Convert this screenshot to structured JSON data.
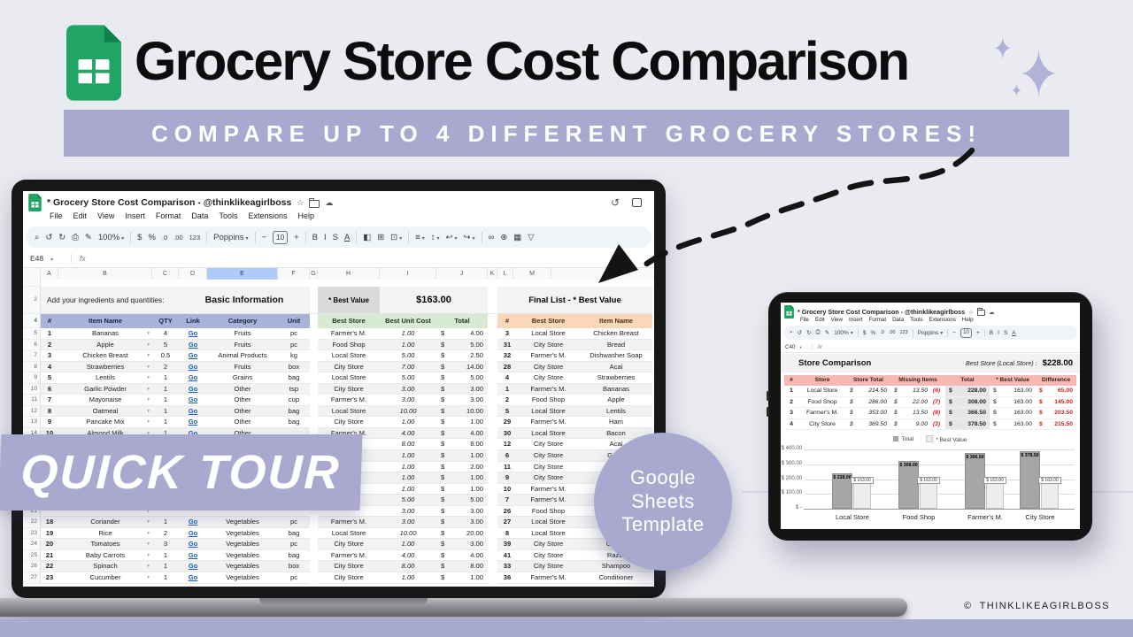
{
  "page": {
    "title": "Grocery Store Cost Comparison",
    "subtitle": "COMPARE UP TO 4 DIFFERENT GROCERY STORES!",
    "quick_tour_label": "QUICK TOUR",
    "badge": {
      "line1": "Google",
      "line2": "Sheets",
      "line3": "Template"
    },
    "copyright_symbol": "©",
    "copyright": "THINKLIKEAGIRLBOSS",
    "sparkle_glyph": "✦"
  },
  "colors": {
    "accent_lavender": "#a9a9d0",
    "sheets_green": "#21a565",
    "bottom_bar": "#a9abce",
    "header_periwinkle": "#a9b3da",
    "header_green": "#d9ead3",
    "header_peach": "#fad7b6",
    "header_pink": "#f5b8b3",
    "negative_red": "#cc1f1f",
    "link_blue": "#1a5dc8"
  },
  "laptop": {
    "doc_title": "* Grocery Store Cost Comparison - @thinklikeagirlboss",
    "menus": [
      "File",
      "Edit",
      "View",
      "Insert",
      "Format",
      "Data",
      "Tools",
      "Extensions",
      "Help"
    ],
    "toolbar": [
      {
        "n": "search-icon",
        "g": "⌕"
      },
      {
        "n": "undo-icon",
        "g": "↺"
      },
      {
        "n": "redo-icon",
        "g": "↻"
      },
      {
        "n": "print-icon",
        "g": "⎙"
      },
      {
        "n": "paint-format-icon",
        "g": "✎"
      },
      {
        "n": "zoom-select",
        "g": "100%",
        "c": "dd"
      },
      {
        "n": "separator",
        "g": "",
        "c": "sep"
      },
      {
        "n": "currency-format-icon",
        "g": "$"
      },
      {
        "n": "percent-format-icon",
        "g": "%"
      },
      {
        "n": "decrease-decimal-icon",
        "g": ".0",
        "c": "sm"
      },
      {
        "n": "increase-decimal-icon",
        "g": ".00",
        "c": "sm"
      },
      {
        "n": "more-formats-icon",
        "g": "123",
        "c": "sm"
      },
      {
        "n": "separator",
        "g": "",
        "c": "sep"
      },
      {
        "n": "font-select",
        "g": "Poppins",
        "c": "dd"
      },
      {
        "n": "separator",
        "g": "",
        "c": "sep"
      },
      {
        "n": "font-size-decrease",
        "g": "−"
      },
      {
        "n": "font-size-value",
        "g": "10",
        "c": "box"
      },
      {
        "n": "font-size-increase",
        "g": "+"
      },
      {
        "n": "separator",
        "g": "",
        "c": "sep"
      },
      {
        "n": "bold-icon",
        "g": "B"
      },
      {
        "n": "italic-icon",
        "g": "I"
      },
      {
        "n": "strikethrough-icon",
        "g": "S"
      },
      {
        "n": "text-color-icon",
        "g": "A",
        "c": "ul"
      },
      {
        "n": "separator",
        "g": "",
        "c": "sep"
      },
      {
        "n": "fill-color-icon",
        "g": "◧"
      },
      {
        "n": "borders-icon",
        "g": "⊞"
      },
      {
        "n": "merge-cells-icon",
        "g": "⊡",
        "c": "dd"
      },
      {
        "n": "separator",
        "g": "",
        "c": "sep"
      },
      {
        "n": "horizontal-align-icon",
        "g": "≡",
        "c": "dd"
      },
      {
        "n": "vertical-align-icon",
        "g": "↕",
        "c": "dd"
      },
      {
        "n": "text-wrap-icon",
        "g": "↩",
        "c": "dd"
      },
      {
        "n": "text-rotation-icon",
        "g": "↪",
        "c": "dd"
      },
      {
        "n": "separator",
        "g": "",
        "c": "sep"
      },
      {
        "n": "insert-link-icon",
        "g": "∞"
      },
      {
        "n": "insert-comment-icon",
        "g": "⊕"
      },
      {
        "n": "insert-chart-icon",
        "g": "▦"
      },
      {
        "n": "filter-icon",
        "g": "▽"
      }
    ],
    "name_box": "E48",
    "fx_label": "fx",
    "col_letters": [
      "A",
      "B",
      "C",
      "D",
      "E",
      "F",
      "G",
      "H",
      "I",
      "J",
      "K",
      "L",
      "M"
    ],
    "gutter_rows": {
      "r1": "1",
      "r2": "2",
      "r3": "3",
      "r4": "4"
    },
    "labels": {
      "add_line": "Add your ingredients and quantities:",
      "basic_info": "Basic Information",
      "best_value_chip": "* Best Value",
      "best_value_total": "$163.00",
      "final_list_title": "Final List - * Best Value"
    },
    "left_headers": [
      "#",
      "Item Name",
      "QTY",
      "Link",
      "Category",
      "Unit"
    ],
    "mid_headers": [
      "Best Store",
      "Best Unit Cost",
      "Total"
    ],
    "final_headers": [
      "#",
      "Best Store",
      "Item Name"
    ],
    "dollar": "$",
    "rows": [
      {
        "r": "5",
        "no": "1",
        "item": "Bananas",
        "qty": "4",
        "link": "Go",
        "cat": "Fruits",
        "unit": "pc",
        "store": "Farmer's M.",
        "cost": "1.00",
        "total": "4.00",
        "fno": "3",
        "fstore": "Local Store",
        "fitem": "Chicken Breast"
      },
      {
        "r": "6",
        "no": "2",
        "item": "Apple",
        "qty": "5",
        "link": "Go",
        "cat": "Fruits",
        "unit": "pc",
        "store": "Food Shop",
        "cost": "1.00",
        "total": "5.00",
        "fno": "31",
        "fstore": "City Store",
        "fitem": "Bread"
      },
      {
        "r": "7",
        "no": "3",
        "item": "Chicken Breast",
        "qty": "0.5",
        "link": "Go",
        "cat": "Animal Products",
        "unit": "kg",
        "store": "Local Store",
        "cost": "5.00",
        "total": "2.50",
        "fno": "32",
        "fstore": "Farmer's M.",
        "fitem": "Dishwasher Soap"
      },
      {
        "r": "8",
        "no": "4",
        "item": "Strawberries",
        "qty": "2",
        "link": "Go",
        "cat": "Fruits",
        "unit": "box",
        "store": "City Store",
        "cost": "7.00",
        "total": "14.00",
        "fno": "28",
        "fstore": "City Store",
        "fitem": "Acai"
      },
      {
        "r": "9",
        "no": "5",
        "item": "Lentils",
        "qty": "1",
        "link": "Go",
        "cat": "Grains",
        "unit": "bag",
        "store": "Local Store",
        "cost": "5.00",
        "total": "5.00",
        "fno": "4",
        "fstore": "City Store",
        "fitem": "Strawberries"
      },
      {
        "r": "10",
        "no": "6",
        "item": "Garlic Powder",
        "qty": "1",
        "link": "Go",
        "cat": "Other",
        "unit": "tsp",
        "store": "City Store",
        "cost": "3.00",
        "total": "3.00",
        "fno": "1",
        "fstore": "Farmer's M.",
        "fitem": "Bananas"
      },
      {
        "r": "11",
        "no": "7",
        "item": "Mayonaise",
        "qty": "1",
        "link": "Go",
        "cat": "Other",
        "unit": "cup",
        "store": "Farmer's M.",
        "cost": "3.00",
        "total": "3.00",
        "fno": "2",
        "fstore": "Food Shop",
        "fitem": "Apple"
      },
      {
        "r": "12",
        "no": "8",
        "item": "Oatmeal",
        "qty": "1",
        "link": "Go",
        "cat": "Other",
        "unit": "bag",
        "store": "Local Store",
        "cost": "10.00",
        "total": "10.00",
        "fno": "5",
        "fstore": "Local Store",
        "fitem": "Lentils"
      },
      {
        "r": "13",
        "no": "9",
        "item": "Pancake Mix",
        "qty": "1",
        "link": "Go",
        "cat": "Other",
        "unit": "bag",
        "store": "City Store",
        "cost": "1.00",
        "total": "1.00",
        "fno": "29",
        "fstore": "Farmer's M.",
        "fitem": "Ham"
      },
      {
        "r": "14",
        "no": "10",
        "item": "Almond Milk",
        "qty": "1",
        "link": "Go",
        "cat": "Other",
        "unit": "",
        "store": "Farmer's M.",
        "cost": "4.00",
        "total": "4.00",
        "fno": "30",
        "fstore": "Local Store",
        "fitem": "Bacon"
      },
      {
        "r": "15",
        "no": "",
        "item": "",
        "qty": "",
        "link": "",
        "cat": "",
        "unit": "",
        "store": "",
        "cost": "8.00",
        "total": "8.00",
        "fno": "12",
        "fstore": "City Store",
        "fitem": "Acai"
      },
      {
        "r": "16",
        "no": "",
        "item": "",
        "qty": "",
        "link": "",
        "cat": "",
        "unit": "",
        "store": "",
        "cost": "1.00",
        "total": "1.00",
        "fno": "6",
        "fstore": "City Store",
        "fitem": "Garlic"
      },
      {
        "r": "17",
        "no": "",
        "item": "",
        "qty": "",
        "link": "",
        "cat": "",
        "unit": "",
        "store": "",
        "cost": "1.00",
        "total": "2.00",
        "fno": "11",
        "fstore": "City Store",
        "fitem": "Gr"
      },
      {
        "r": "18",
        "no": "",
        "item": "",
        "qty": "",
        "link": "",
        "cat": "",
        "unit": "",
        "store": "",
        "cost": "1.00",
        "total": "1.00",
        "fno": "9",
        "fstore": "City Store",
        "fitem": "P"
      },
      {
        "r": "19",
        "no": "",
        "item": "",
        "qty": "",
        "link": "",
        "cat": "",
        "unit": "",
        "store": "",
        "cost": "1.00",
        "total": "1.00",
        "fno": "10",
        "fstore": "Farmer's M.",
        "fitem": ""
      },
      {
        "r": "20",
        "no": "",
        "item": "",
        "qty": "",
        "link": "",
        "cat": "",
        "unit": "",
        "store": "",
        "cost": "5.00",
        "total": "5.00",
        "fno": "7",
        "fstore": "Farmer's M.",
        "fitem": ""
      },
      {
        "r": "21",
        "no": "",
        "item": "",
        "qty": "",
        "link": "",
        "cat": "",
        "unit": "",
        "store": "",
        "cost": "3.00",
        "total": "3.00",
        "fno": "26",
        "fstore": "Food Shop",
        "fitem": ""
      },
      {
        "r": "22",
        "no": "18",
        "item": "Coriander",
        "qty": "1",
        "link": "Go",
        "cat": "Vegetables",
        "unit": "pc",
        "store": "Farmer's M.",
        "cost": "3.00",
        "total": "3.00",
        "fno": "27",
        "fstore": "Local Store",
        "fitem": ""
      },
      {
        "r": "23",
        "no": "19",
        "item": "Rice",
        "qty": "2",
        "link": "Go",
        "cat": "Vegetables",
        "unit": "bag",
        "store": "Local Store",
        "cost": "10.00",
        "total": "20.00",
        "fno": "8",
        "fstore": "Local Store",
        "fitem": "O"
      },
      {
        "r": "24",
        "no": "20",
        "item": "Tomatoes",
        "qty": "3",
        "link": "Go",
        "cat": "Vegetables",
        "unit": "pc",
        "store": "City Store",
        "cost": "1.00",
        "total": "3.00",
        "fno": "39",
        "fstore": "City Store",
        "fitem": "Cotton"
      },
      {
        "r": "25",
        "no": "21",
        "item": "Baby Carrots",
        "qty": "1",
        "link": "Go",
        "cat": "Vegetables",
        "unit": "bag",
        "store": "Farmer's M.",
        "cost": "4.00",
        "total": "4.00",
        "fno": "41",
        "fstore": "City Store",
        "fitem": "Razor"
      },
      {
        "r": "26",
        "no": "22",
        "item": "Spinach",
        "qty": "1",
        "link": "Go",
        "cat": "Vegetables",
        "unit": "box",
        "store": "City Store",
        "cost": "8.00",
        "total": "8.00",
        "fno": "33",
        "fstore": "City Store",
        "fitem": "Shampoo"
      },
      {
        "r": "27",
        "no": "23",
        "item": "Cucumber",
        "qty": "1",
        "link": "Go",
        "cat": "Vegetables",
        "unit": "pc",
        "store": "City Store",
        "cost": "1.00",
        "total": "1.00",
        "fno": "36",
        "fstore": "Farmer's M.",
        "fitem": "Conditioner"
      }
    ]
  },
  "tablet": {
    "doc_title": "* Grocery Store Cost Comparison - @thinklikeagirlboss",
    "menus": [
      "File",
      "Edit",
      "View",
      "Insert",
      "Format",
      "Data",
      "Tools",
      "Extensions",
      "Help"
    ],
    "toolbar": [
      {
        "n": "search-icon",
        "g": "⌕"
      },
      {
        "n": "undo-icon",
        "g": "↺"
      },
      {
        "n": "redo-icon",
        "g": "↻"
      },
      {
        "n": "print-icon",
        "g": "⎙"
      },
      {
        "n": "paint-format-icon",
        "g": "✎"
      },
      {
        "n": "zoom-select",
        "g": "100%",
        "c": "dd"
      },
      {
        "n": "separator",
        "g": "",
        "c": "sep"
      },
      {
        "n": "currency-format-icon",
        "g": "$"
      },
      {
        "n": "percent-format-icon",
        "g": "%"
      },
      {
        "n": "decrease-decimal-icon",
        "g": ".0",
        "c": "sm"
      },
      {
        "n": "increase-decimal-icon",
        "g": ".00",
        "c": "sm"
      },
      {
        "n": "more-formats-icon",
        "g": "123",
        "c": "sm"
      },
      {
        "n": "separator",
        "g": "",
        "c": "sep"
      },
      {
        "n": "font-select",
        "g": "Poppins",
        "c": "dd"
      },
      {
        "n": "separator",
        "g": "",
        "c": "sep"
      },
      {
        "n": "font-size-decrease",
        "g": "−"
      },
      {
        "n": "font-size-value",
        "g": "10",
        "c": "box"
      },
      {
        "n": "font-size-increase",
        "g": "+"
      },
      {
        "n": "separator",
        "g": "",
        "c": "sep"
      },
      {
        "n": "bold-icon",
        "g": "B"
      },
      {
        "n": "italic-icon",
        "g": "I"
      },
      {
        "n": "strikethrough-icon",
        "g": "S"
      },
      {
        "n": "text-color-icon",
        "g": "A",
        "c": "ul"
      }
    ],
    "name_box": "C40",
    "fx_label": "fx",
    "sheet_title": "Store Comparison",
    "best_store_label": "Best Store (Local Store) :",
    "best_store_value": "$228.00",
    "dollar": "$",
    "table": {
      "headers": [
        "#",
        "Store",
        "Store Total",
        "Missing Items",
        "Total",
        "* Best Value",
        "Difference"
      ],
      "rows": [
        {
          "no": "1",
          "store": "Local Store",
          "store_total": "214.50",
          "missing": "13.50",
          "missing_n": "(6)",
          "total": "228.00",
          "best": "163.00",
          "diff": "65.00"
        },
        {
          "no": "2",
          "store": "Food Shop",
          "store_total": "286.00",
          "missing": "22.00",
          "missing_n": "(7)",
          "total": "308.00",
          "best": "163.00",
          "diff": "145.00"
        },
        {
          "no": "3",
          "store": "Farmer's M.",
          "store_total": "353.00",
          "missing": "13.50",
          "missing_n": "(8)",
          "total": "366.50",
          "best": "163.00",
          "diff": "203.50"
        },
        {
          "no": "4",
          "store": "City Store",
          "store_total": "369.50",
          "missing": "9.00",
          "missing_n": "(3)",
          "total": "378.50",
          "best": "163.00",
          "diff": "215.50"
        }
      ]
    },
    "chart_data": {
      "type": "bar",
      "categories": [
        "Local Store",
        "Food Shop",
        "Farmer's M.",
        "City Store"
      ],
      "series": [
        {
          "name": "Total",
          "values": [
            228,
            308,
            366.5,
            378.5
          ]
        },
        {
          "name": "* Best Value",
          "values": [
            163,
            163,
            163,
            163
          ]
        }
      ],
      "bar_labels": [
        [
          "$ 228.00",
          "$ 163.00"
        ],
        [
          "$ 308.00",
          "$ 163.00"
        ],
        [
          "$ 366.50",
          "$ 163.00"
        ],
        [
          "$ 378.50",
          "$ 163.00"
        ]
      ],
      "y_ticks": [
        "$ 400.00",
        "$ 300.00",
        "$ 200.00",
        "$ 100.00",
        "$ -"
      ],
      "ylim": [
        0,
        400
      ],
      "grid": true,
      "legend_position": "top"
    }
  }
}
